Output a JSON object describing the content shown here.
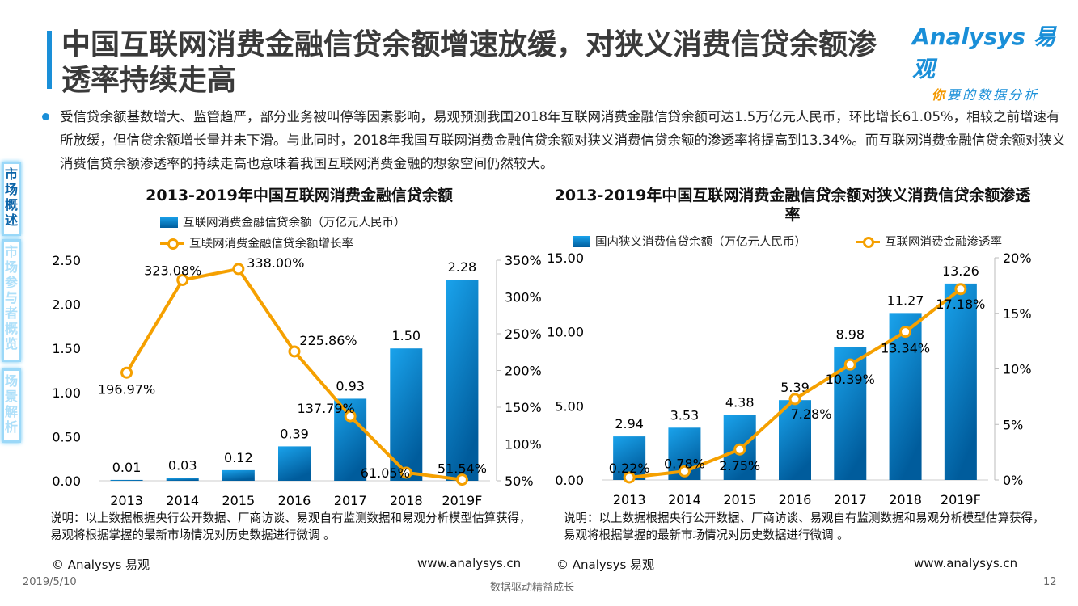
{
  "title": "中国互联网消费金融信贷余额增速放缓，对狭义消费信贷余额渗透率持续走高",
  "logo": {
    "brand": "Analysys 易观",
    "slogan_highlight": "你",
    "slogan": "要的数据分析"
  },
  "bullet": "受信贷余额基数增大、监管趋严，部分业务被叫停等因素影响，易观预测我国2018年互联网消费金融信贷余额可达1.5万亿元人民币，环比增长61.05%，相较之前增速有所放缓，但信贷余额增长量并未下滑。与此同时，2018年我国互联网消费金融信贷余额对狭义消费信贷余额的渗透率将提高到13.34%。而互联网消费金融信贷余额对狭义消费信贷余额渗透率的持续走高也意味着我国互联网消费金融的想象空间仍然较大。",
  "sidebar": [
    {
      "label": "市场概述",
      "active": true
    },
    {
      "label": "市场参与者概览",
      "active": false
    },
    {
      "label": "场景解析",
      "active": false
    }
  ],
  "colors": {
    "accent": "#1a8fd8",
    "bar_top": "#1aa3ec",
    "bar_bottom": "#005c9c",
    "line": "#f5a000"
  },
  "chart_data": [
    {
      "type": "bar+line",
      "title": "2013-2019年中国互联网消费金融信贷余额",
      "categories": [
        "2013",
        "2014",
        "2015",
        "2016",
        "2017",
        "2018",
        "2019F"
      ],
      "series": [
        {
          "name": "互联网消费金融信贷余额（万亿元人民币）",
          "type": "bar",
          "axis": "left",
          "values": [
            0.01,
            0.03,
            0.12,
            0.39,
            0.93,
            1.5,
            2.28
          ],
          "labels": [
            "0.01",
            "0.03",
            "0.12",
            "0.39",
            "0.93",
            "1.50",
            "2.28"
          ]
        },
        {
          "name": "互联网消费金融信贷余额增长率",
          "type": "line",
          "axis": "right",
          "values": [
            196.97,
            323.08,
            338.0,
            225.86,
            137.79,
            61.05,
            51.54
          ],
          "labels": [
            "196.97%",
            "323.08%",
            "338.00%",
            "225.86%",
            "137.79%",
            "61.05%",
            "51.54%"
          ]
        }
      ],
      "ylim": [
        0,
        2.5
      ],
      "yticks": [
        "0.00",
        "0.50",
        "1.00",
        "1.50",
        "2.00",
        "2.50"
      ],
      "y2lim": [
        50,
        350
      ],
      "y2ticks": [
        "50%",
        "100%",
        "150%",
        "200%",
        "250%",
        "300%",
        "350%"
      ],
      "legend": "top"
    },
    {
      "type": "bar+line",
      "title": "2013-2019年中国互联网消费金融信贷余额对狭义消费信贷余额渗透率",
      "categories": [
        "2013",
        "2014",
        "2015",
        "2016",
        "2017",
        "2018",
        "2019F"
      ],
      "series": [
        {
          "name": "国内狭义消费信贷余额（万亿元人民币）",
          "type": "bar",
          "axis": "left",
          "values": [
            2.94,
            3.53,
            4.38,
            5.39,
            8.98,
            11.27,
            13.26
          ],
          "labels": [
            "2.94",
            "3.53",
            "4.38",
            "5.39",
            "8.98",
            "11.27",
            "13.26"
          ]
        },
        {
          "name": "互联网消费金融渗透率",
          "type": "line",
          "axis": "right",
          "values": [
            0.22,
            0.78,
            2.75,
            7.28,
            10.39,
            13.34,
            17.18
          ],
          "labels": [
            "0.22%",
            "0.78%",
            "2.75%",
            "7.28%",
            "10.39%",
            "13.34%",
            "17.18%"
          ]
        }
      ],
      "ylim": [
        0,
        15
      ],
      "yticks": [
        "0.00",
        "5.00",
        "10.00",
        "15.00"
      ],
      "y2lim": [
        0,
        20
      ],
      "y2ticks": [
        "0%",
        "5%",
        "10%",
        "15%",
        "20%"
      ],
      "legend": "top"
    }
  ],
  "notes": [
    "说明：以上数据根据央行公开数据、厂商访谈、易观自有监测数据和易观分析模型估算获得，易观将根据掌握的最新市场情况对历史数据进行微调 。",
    "说明：以上数据根据央行公开数据、厂商访谈、易观自有监测数据和易观分析模型估算获得，易观将根据掌握的最新市场情况对历史数据进行微调 。"
  ],
  "footer": {
    "copyright": "© Analysys 易观",
    "url": "www.analysys.cn",
    "date": "2019/5/10",
    "slogan": "数据驱动精益成长",
    "page": "12"
  }
}
